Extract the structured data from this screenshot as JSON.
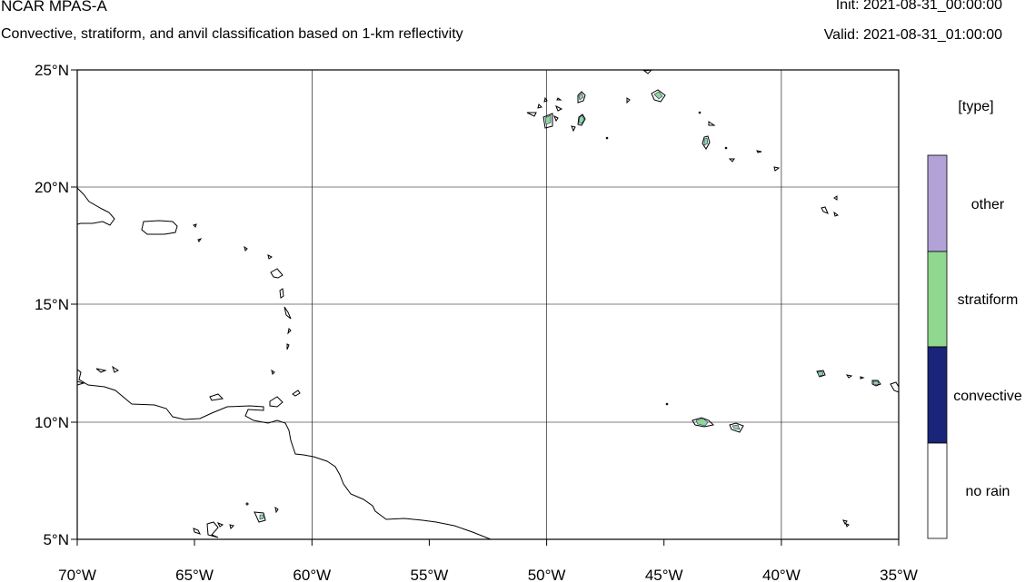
{
  "header": {
    "title": "NCAR MPAS-A",
    "subtitle": "Convective, stratiform, and anvil classification based on 1-km reflectivity",
    "init": "Init: 2021-08-31_00:00:00",
    "valid": "Valid: 2021-08-31_01:00:00"
  },
  "map": {
    "lat_ticks": [
      "25°N",
      "20°N",
      "15°N",
      "10°N",
      "5°N"
    ],
    "lon_ticks": [
      "70°W",
      "65°W",
      "60°W",
      "55°W",
      "50°W",
      "45°W",
      "40°W",
      "35°W"
    ],
    "extent": {
      "lon": [
        -70,
        -35
      ],
      "lat": [
        5,
        25
      ]
    },
    "grid": true
  },
  "legend": {
    "title": "[type]",
    "items": [
      {
        "label": "other",
        "color": "#b3a2d8"
      },
      {
        "label": "stratiform",
        "color": "#90d890"
      },
      {
        "label": "convective",
        "color": "#1a2478"
      },
      {
        "label": "no rain",
        "color": "#ffffff"
      }
    ]
  },
  "colors": {
    "coast": "#000000",
    "grid": "#000000",
    "stratiform": "#90d890",
    "convective": "#1a2478"
  }
}
